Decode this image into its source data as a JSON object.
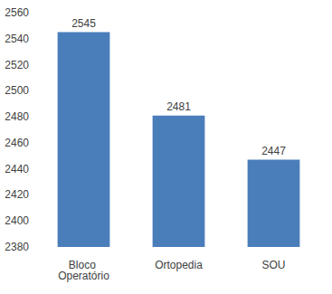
{
  "chart_data": {
    "type": "bar",
    "categories": [
      "Bloco Operatório",
      "Ortopedia",
      "SOU"
    ],
    "values": [
      2545,
      2481,
      2447
    ],
    "color": "#4a7ebb",
    "ylim": [
      2380,
      2560
    ],
    "yticks": [
      2380,
      2400,
      2420,
      2440,
      2460,
      2480,
      2500,
      2520,
      2540,
      2560
    ],
    "grid": false,
    "data_labels": true
  }
}
